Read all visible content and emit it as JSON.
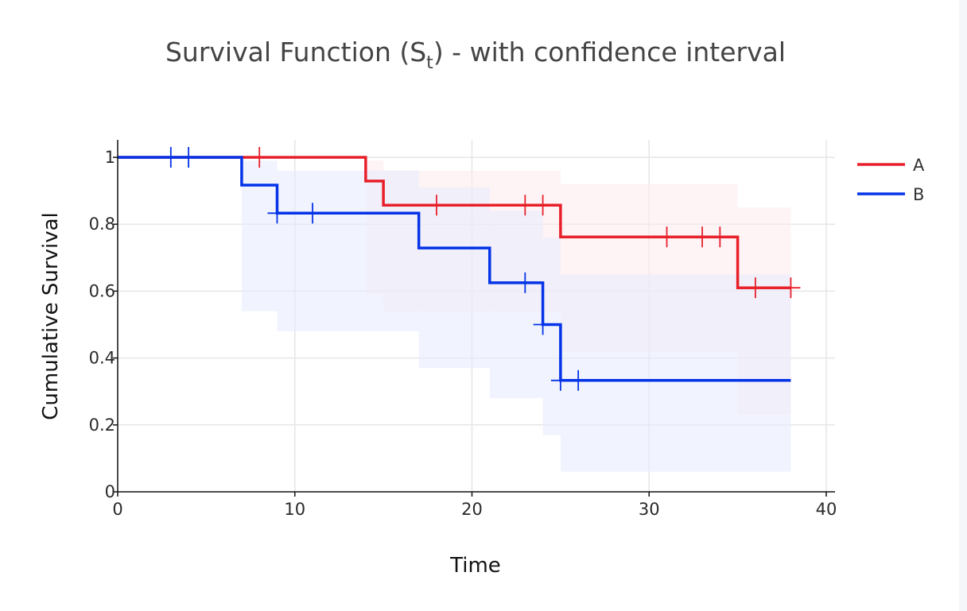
{
  "chart_data": {
    "type": "line",
    "subtype": "step",
    "title_main": "Survival Function (S",
    "title_sub": "t",
    "title_tail": ") - with confidence interval",
    "xlabel": "Time",
    "ylabel": "Cumulative Survival",
    "xlim": [
      0,
      40
    ],
    "ylim": [
      0,
      1.05
    ],
    "xticks": [
      0,
      10,
      20,
      30,
      40
    ],
    "xtick_labels": [
      "0",
      "10",
      "20",
      "30",
      "40"
    ],
    "yticks": [
      0,
      0.2,
      0.4,
      0.6,
      0.8,
      1
    ],
    "ytick_labels": [
      "0",
      "0.2",
      "0.4",
      "0.6",
      "0.8",
      "1"
    ],
    "grid": true,
    "legend_position": "top-right",
    "series": [
      {
        "name": "A",
        "color": "#e8202a",
        "ci_color": "#fde9ec",
        "steps": [
          [
            0,
            1
          ],
          [
            14,
            0.929
          ],
          [
            15,
            0.857
          ],
          [
            25,
            0.762
          ],
          [
            35,
            0.61
          ],
          [
            38,
            0.61
          ]
        ],
        "ci_lower": [
          [
            0,
            1
          ],
          [
            14,
            0.59
          ],
          [
            15,
            0.54
          ],
          [
            25,
            0.42
          ],
          [
            35,
            0.23
          ],
          [
            38,
            0.23
          ]
        ],
        "ci_upper": [
          [
            0,
            1
          ],
          [
            14,
            0.99
          ],
          [
            15,
            0.96
          ],
          [
            25,
            0.92
          ],
          [
            35,
            0.85
          ],
          [
            38,
            0.85
          ]
        ],
        "censored": [
          8,
          18,
          23,
          24,
          31,
          33,
          34,
          36,
          38
        ]
      },
      {
        "name": "B",
        "color": "#0433e8",
        "ci_color": "#e6ebfd",
        "steps": [
          [
            0,
            1
          ],
          [
            7,
            0.917
          ],
          [
            9,
            0.833
          ],
          [
            17,
            0.729
          ],
          [
            21,
            0.625
          ],
          [
            24,
            0.5
          ],
          [
            25,
            0.333
          ],
          [
            38,
            0.333
          ]
        ],
        "ci_lower": [
          [
            0,
            1
          ],
          [
            7,
            0.54
          ],
          [
            9,
            0.48
          ],
          [
            17,
            0.37
          ],
          [
            21,
            0.28
          ],
          [
            24,
            0.17
          ],
          [
            25,
            0.06
          ],
          [
            38,
            0.06
          ]
        ],
        "ci_upper": [
          [
            0,
            1
          ],
          [
            7,
            0.99
          ],
          [
            9,
            0.96
          ],
          [
            17,
            0.91
          ],
          [
            21,
            0.84
          ],
          [
            24,
            0.76
          ],
          [
            25,
            0.65
          ],
          [
            38,
            0.65
          ]
        ],
        "censored": [
          3,
          4,
          9,
          11,
          23,
          24,
          25,
          26
        ]
      }
    ]
  }
}
